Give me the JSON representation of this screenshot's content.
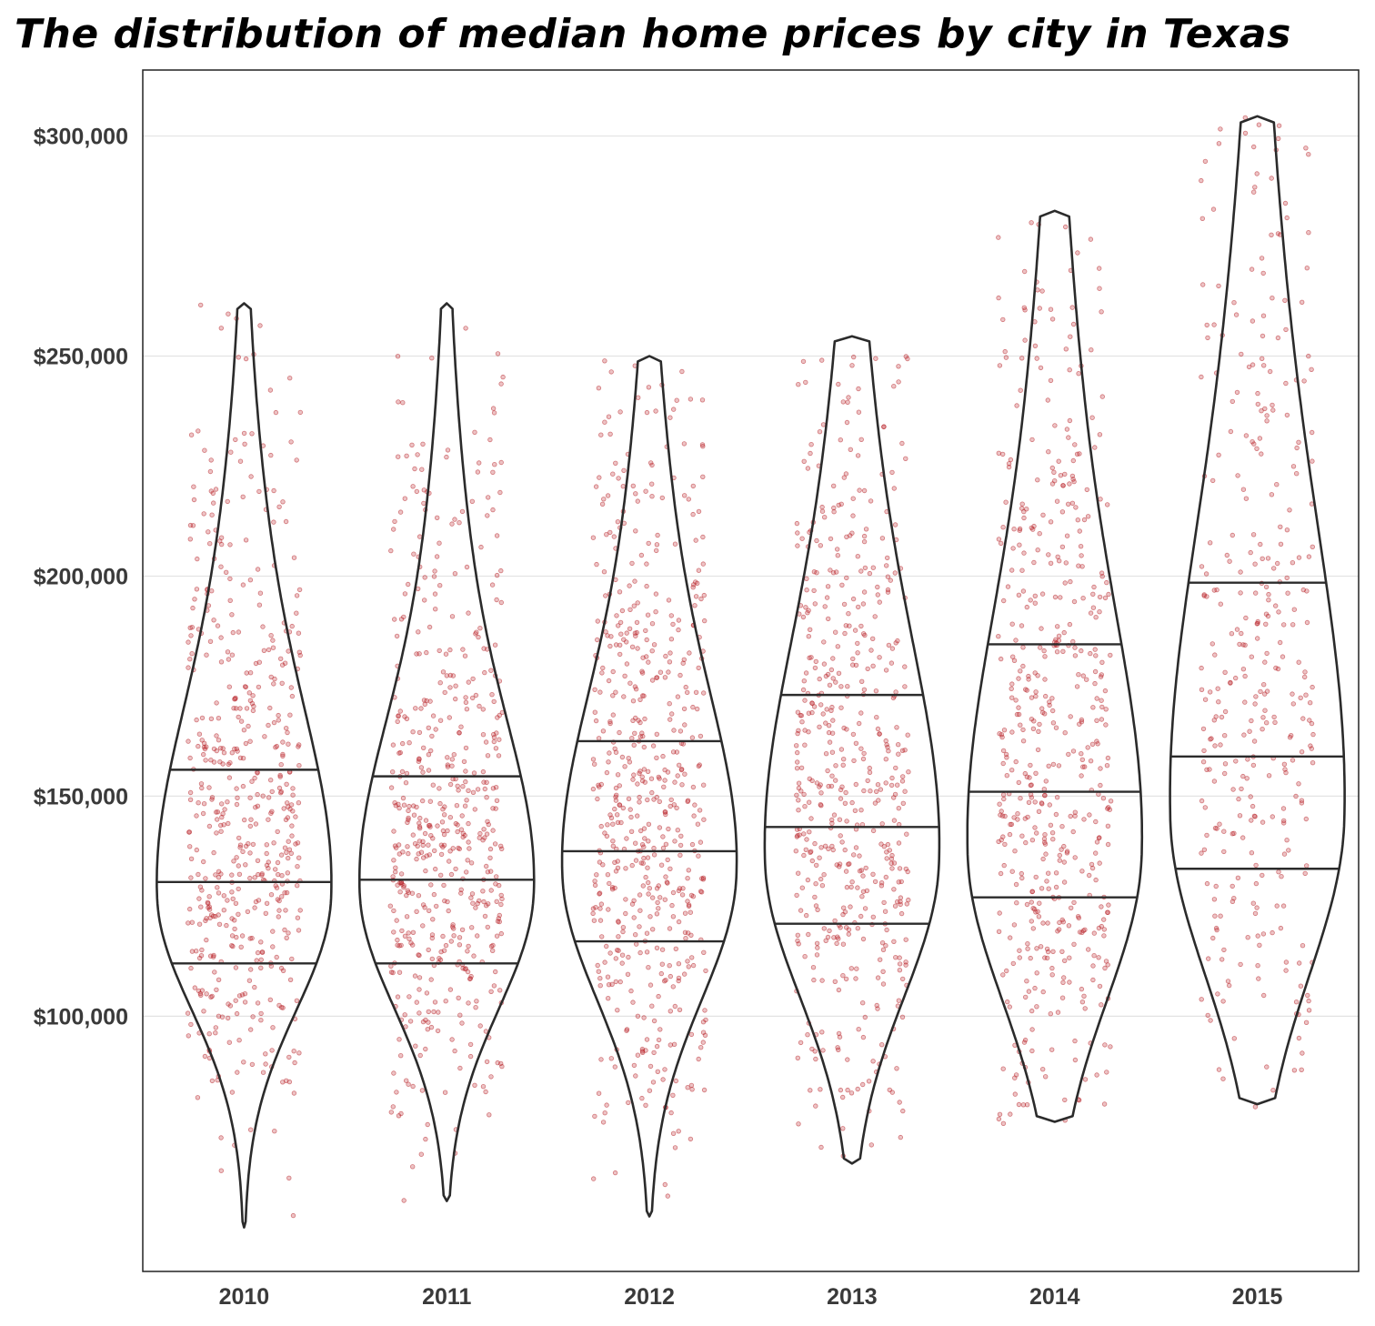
{
  "chart_data": {
    "type": "violin",
    "title": "The distribution of median home prices by city in Texas",
    "xlabel": "",
    "ylabel": "",
    "categories": [
      "2010",
      "2011",
      "2012",
      "2013",
      "2014",
      "2015"
    ],
    "ylim": [
      42000,
      315000
    ],
    "y_ticks": [
      100000,
      150000,
      200000,
      250000,
      300000
    ],
    "y_tick_labels": [
      "$100,000",
      "$150,000",
      "$200,000",
      "$250,000",
      "$300,000"
    ],
    "grid": "horizontal",
    "legend": "none",
    "point_color": "#c0282d",
    "line_color": "#2b2b2b",
    "series": [
      {
        "year": "2010",
        "min": 52000,
        "q1": 112000,
        "median": 130500,
        "q3": 156000,
        "max": 262000,
        "peak": 127000,
        "points": 520
      },
      {
        "year": "2011",
        "min": 58000,
        "q1": 112000,
        "median": 131000,
        "q3": 154500,
        "max": 262000,
        "peak": 128000,
        "points": 520
      },
      {
        "year": "2012",
        "min": 54500,
        "q1": 117000,
        "median": 137500,
        "q3": 162500,
        "max": 250000,
        "peak": 132000,
        "points": 560
      },
      {
        "year": "2013",
        "min": 66500,
        "q1": 121000,
        "median": 143000,
        "q3": 173000,
        "max": 254500,
        "peak": 135000,
        "points": 520
      },
      {
        "year": "2014",
        "min": 76000,
        "q1": 127000,
        "median": 151000,
        "q3": 184500,
        "max": 283000,
        "peak": 137000,
        "points": 520
      },
      {
        "year": "2015",
        "min": 80000,
        "q1": 133500,
        "median": 159000,
        "q3": 198500,
        "max": 304500,
        "peak": 145000,
        "points": 340
      }
    ]
  }
}
